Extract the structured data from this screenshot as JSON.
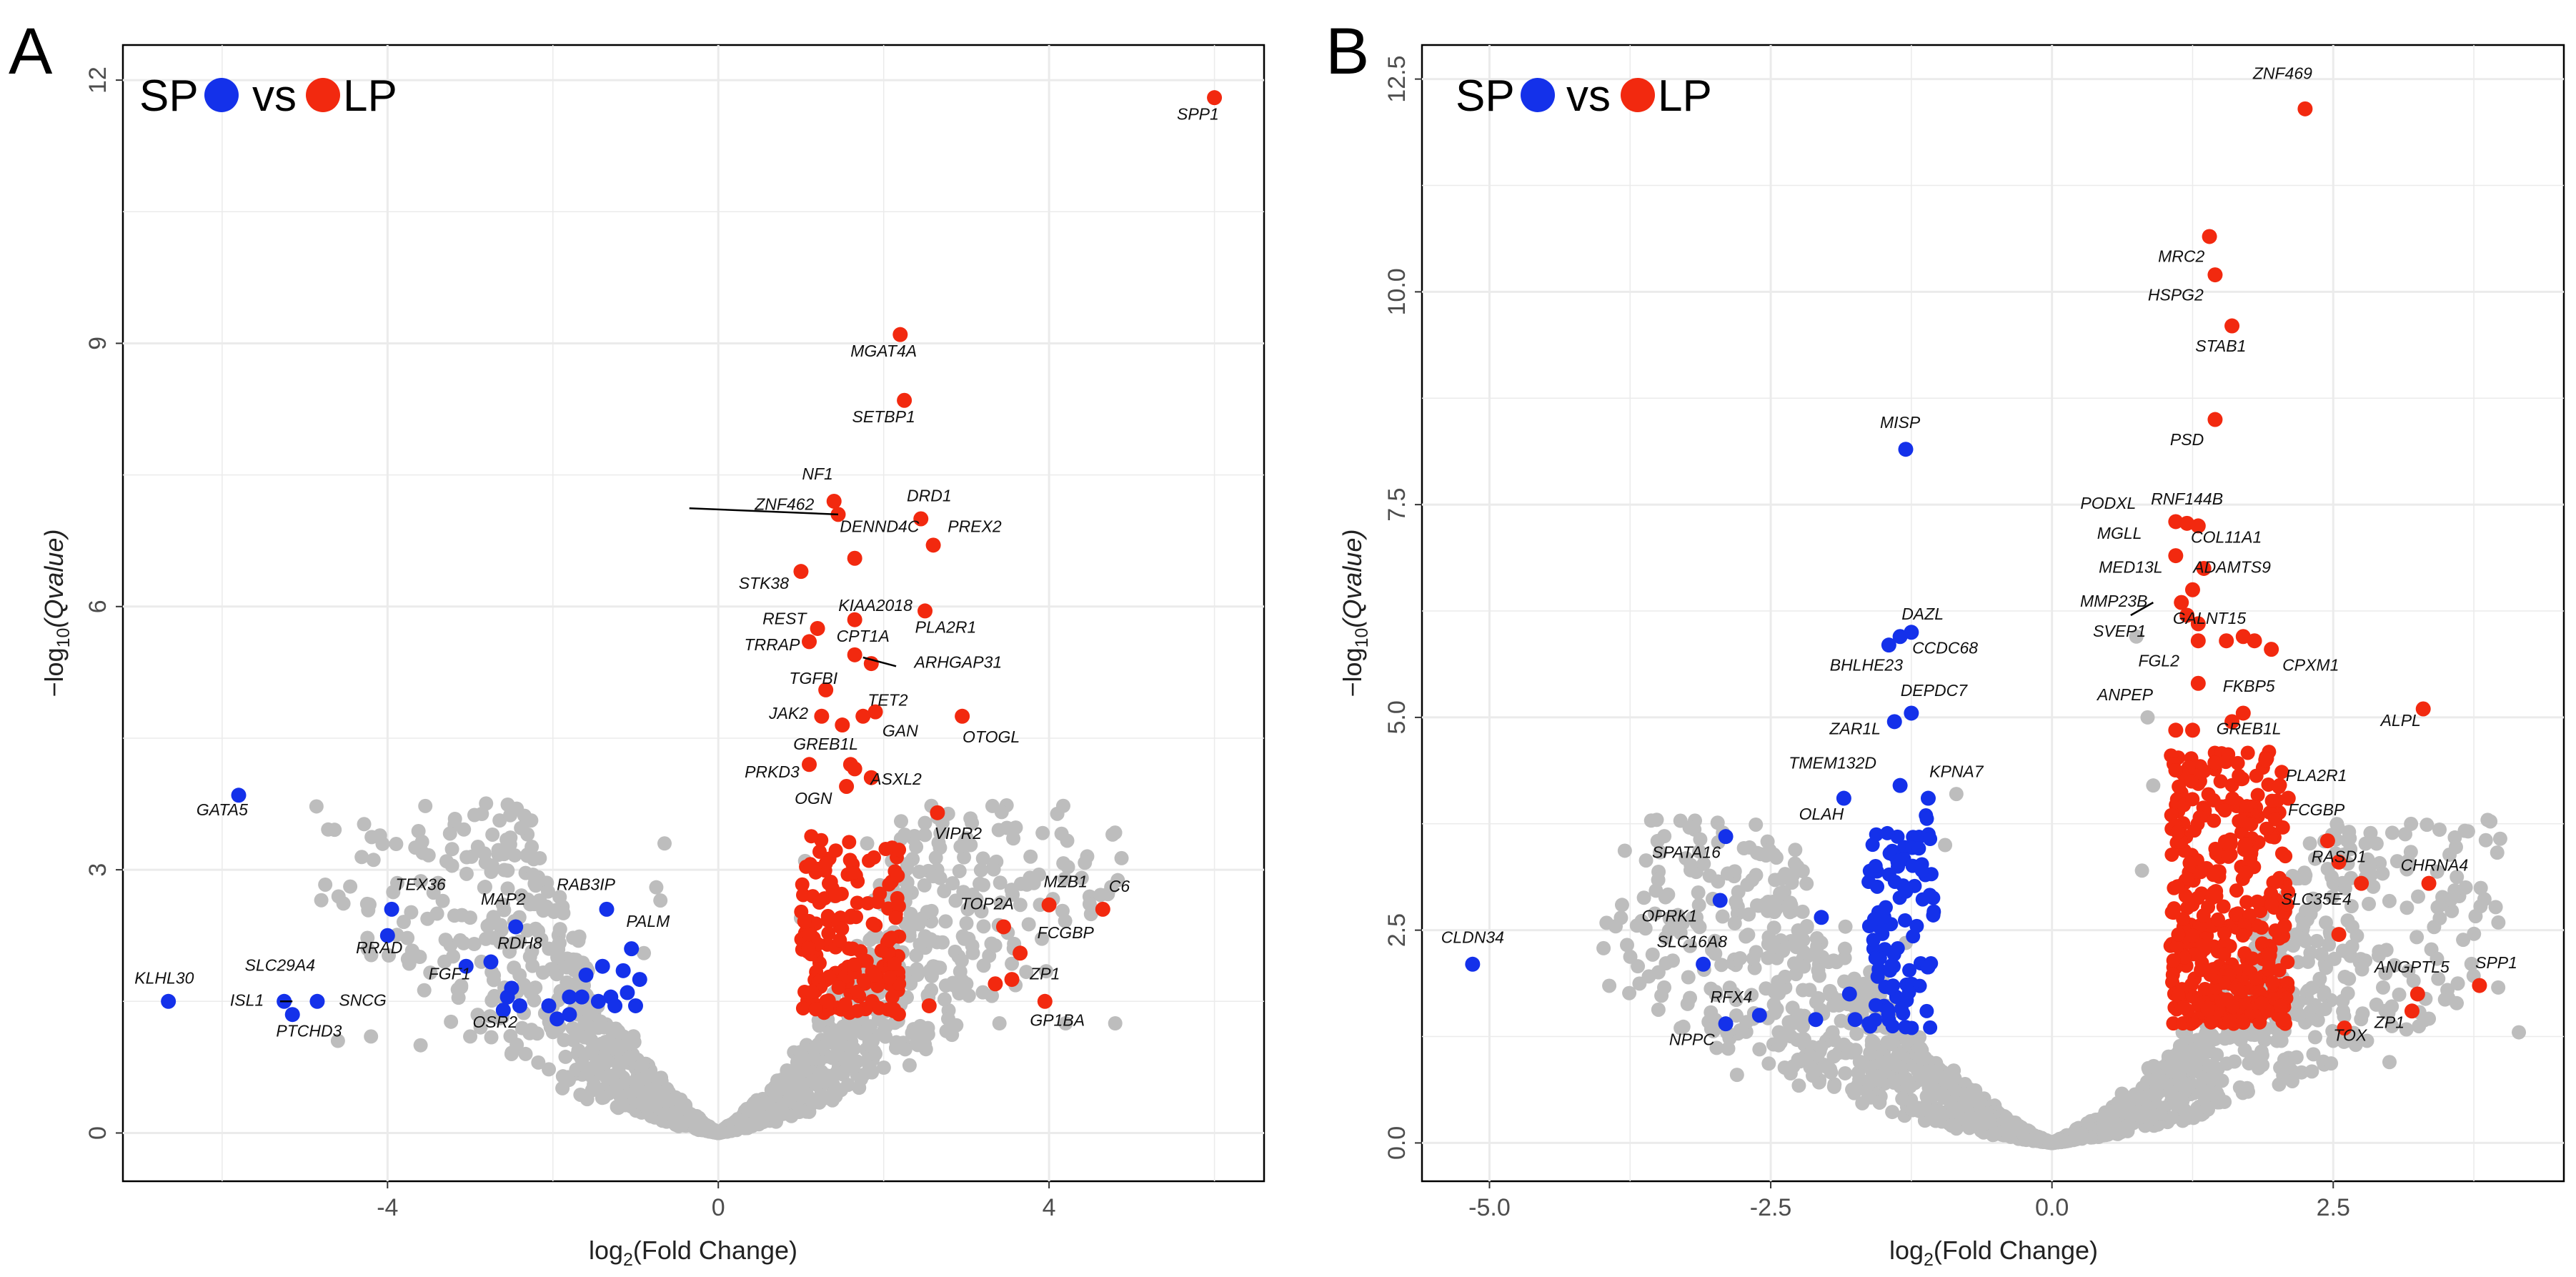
{
  "colors": {
    "down": "#1431ea",
    "up": "#f2290f",
    "ns": "#bdbdbd"
  },
  "chart_data": [
    {
      "type": "scatter",
      "panel": "A",
      "legend": {
        "left": "SP",
        "mid": "vs",
        "right": "LP",
        "placement": "top-left"
      },
      "xlabel_main": "log",
      "xlabel_sub": "2",
      "xlabel_rest": "(Fold  Change)",
      "ylabel_main": "−log",
      "ylabel_sub": "10",
      "ylabel_rest": "(Qvalue)",
      "xlim": [
        -7.2,
        6.6
      ],
      "ylim": [
        -0.55,
        12.4
      ],
      "xticks": [
        -4,
        0,
        4
      ],
      "yticks": [
        0,
        3,
        6,
        9,
        12
      ],
      "xtick_labels": [
        "-4",
        "0",
        "4"
      ],
      "ytick_labels": [
        "0",
        "3",
        "6",
        "9",
        "12"
      ],
      "ns_count": 1700,
      "ns_seed": 11,
      "ns_xspan": 4.9,
      "grey_extra": [
        [
          -4.6,
          1.05
        ],
        [
          -4.2,
          1.1
        ],
        [
          -3.6,
          1.0
        ],
        [
          -3.0,
          1.1
        ],
        [
          -2.5,
          0.9
        ],
        [
          -2.0,
          1.15
        ],
        [
          -1.7,
          1.4
        ],
        [
          -0.9,
          2.05
        ],
        [
          -0.7,
          2.65
        ],
        [
          -0.75,
          2.8
        ],
        [
          -0.65,
          3.3
        ],
        [
          1.0,
          2.45
        ],
        [
          1.05,
          3.1
        ],
        [
          1.8,
          3.3
        ],
        [
          2.1,
          3.1
        ],
        [
          2.4,
          2.4
        ],
        [
          3.0,
          1.7
        ],
        [
          3.4,
          1.25
        ],
        [
          4.2,
          1.25
        ],
        [
          4.8,
          1.25
        ],
        [
          2.6,
          1.9
        ],
        [
          1.4,
          2.7
        ]
      ],
      "up_points": [
        [
          6.0,
          11.8
        ],
        [
          2.2,
          9.1
        ],
        [
          2.25,
          8.35
        ],
        [
          1.4,
          7.2
        ],
        [
          1.45,
          7.05
        ],
        [
          2.45,
          7.0
        ],
        [
          2.6,
          6.7
        ],
        [
          1.65,
          6.55
        ],
        [
          1.0,
          6.4
        ],
        [
          2.5,
          5.95
        ],
        [
          1.2,
          5.75
        ],
        [
          1.65,
          5.85
        ],
        [
          1.1,
          5.6
        ],
        [
          1.65,
          5.45
        ],
        [
          1.85,
          5.35
        ],
        [
          1.3,
          5.05
        ],
        [
          1.25,
          4.75
        ],
        [
          1.9,
          4.8
        ],
        [
          1.75,
          4.75
        ],
        [
          1.5,
          4.65
        ],
        [
          2.95,
          4.75
        ],
        [
          1.1,
          4.2
        ],
        [
          1.6,
          4.2
        ],
        [
          1.65,
          4.15
        ],
        [
          1.85,
          4.05
        ],
        [
          2.65,
          3.65
        ],
        [
          1.55,
          3.95
        ],
        [
          4.0,
          2.6
        ],
        [
          4.65,
          2.55
        ],
        [
          3.45,
          2.35
        ],
        [
          3.65,
          2.05
        ],
        [
          3.55,
          1.75
        ],
        [
          3.35,
          1.7
        ],
        [
          3.95,
          1.5
        ],
        [
          2.55,
          1.45
        ]
      ],
      "up_cloud": {
        "n": 170,
        "x0": 1.0,
        "x1": 2.2,
        "y0": 1.35,
        "y1": 3.4,
        "seed": 5
      },
      "down_points": [
        [
          -5.8,
          3.85
        ],
        [
          -3.95,
          2.55
        ],
        [
          -4.0,
          2.25
        ],
        [
          -3.05,
          1.9
        ],
        [
          -2.45,
          2.35
        ],
        [
          -2.75,
          1.95
        ],
        [
          -2.5,
          1.65
        ],
        [
          -1.35,
          2.55
        ],
        [
          -6.65,
          1.5
        ],
        [
          -5.25,
          1.5
        ],
        [
          -5.15,
          1.35
        ],
        [
          -4.85,
          1.5
        ],
        [
          -1.05,
          2.1
        ],
        [
          -1.4,
          1.9
        ],
        [
          -1.15,
          1.85
        ],
        [
          -0.95,
          1.75
        ],
        [
          -1.3,
          1.55
        ],
        [
          -1.45,
          1.5
        ],
        [
          -1.6,
          1.8
        ],
        [
          -1.8,
          1.55
        ],
        [
          -1.65,
          1.55
        ],
        [
          -2.4,
          1.45
        ],
        [
          -2.05,
          1.45
        ],
        [
          -1.95,
          1.3
        ],
        [
          -1.8,
          1.35
        ],
        [
          -2.55,
          1.55
        ],
        [
          -2.6,
          1.4
        ],
        [
          -1.0,
          1.45
        ],
        [
          -1.1,
          1.6
        ],
        [
          -1.25,
          1.45
        ]
      ],
      "labels": [
        {
          "text": "SPP1",
          "x": 5.8,
          "y": 11.55
        },
        {
          "text": "MGAT4A",
          "x": 2.0,
          "y": 8.85
        },
        {
          "text": "SETBP1",
          "x": 2.0,
          "y": 8.1
        },
        {
          "text": "NF1",
          "x": 1.2,
          "y": 7.45
        },
        {
          "text": "ZNF462",
          "x": 0.8,
          "y": 7.1
        },
        {
          "text": "DRD1",
          "x": 2.55,
          "y": 7.2
        },
        {
          "text": "DENND4C",
          "x": 1.95,
          "y": 6.85
        },
        {
          "text": "PREX2",
          "x": 3.1,
          "y": 6.85
        },
        {
          "text": "STK38",
          "x": 0.55,
          "y": 6.2
        },
        {
          "text": "KIAA2018",
          "x": 1.9,
          "y": 5.95
        },
        {
          "text": "REST",
          "x": 0.8,
          "y": 5.8
        },
        {
          "text": "PLA2R1",
          "x": 2.75,
          "y": 5.7
        },
        {
          "text": "CPT1A",
          "x": 1.75,
          "y": 5.6
        },
        {
          "text": "TRRAP",
          "x": 0.65,
          "y": 5.5
        },
        {
          "text": "ARHGAP31",
          "x": 2.9,
          "y": 5.3
        },
        {
          "text": "TGFBI",
          "x": 1.15,
          "y": 5.12
        },
        {
          "text": "TET2",
          "x": 2.05,
          "y": 4.87
        },
        {
          "text": "JAK2",
          "x": 0.85,
          "y": 4.72
        },
        {
          "text": "GAN",
          "x": 2.2,
          "y": 4.52
        },
        {
          "text": "OTOGL",
          "x": 3.3,
          "y": 4.45
        },
        {
          "text": "GREB1L",
          "x": 1.3,
          "y": 4.37
        },
        {
          "text": "PRKD3",
          "x": 0.65,
          "y": 4.05
        },
        {
          "text": "ASXL2",
          "x": 2.15,
          "y": 3.97
        },
        {
          "text": "OGN",
          "x": 1.15,
          "y": 3.75
        },
        {
          "text": "VIPR2",
          "x": 2.9,
          "y": 3.35
        },
        {
          "text": "GATA5",
          "x": -6.0,
          "y": 3.62
        },
        {
          "text": "TEX36",
          "x": -3.6,
          "y": 2.77
        },
        {
          "text": "RAB3IP",
          "x": -1.6,
          "y": 2.77
        },
        {
          "text": "MAP2",
          "x": -2.6,
          "y": 2.6
        },
        {
          "text": "PALM",
          "x": -0.85,
          "y": 2.35
        },
        {
          "text": "TOP2A",
          "x": 3.25,
          "y": 2.55
        },
        {
          "text": "MZB1",
          "x": 4.2,
          "y": 2.8
        },
        {
          "text": "C6",
          "x": 4.85,
          "y": 2.75
        },
        {
          "text": "FCGBP",
          "x": 4.2,
          "y": 2.22
        },
        {
          "text": "RRAD",
          "x": -4.1,
          "y": 2.05
        },
        {
          "text": "RDH8",
          "x": -2.4,
          "y": 2.1
        },
        {
          "text": "FGF1",
          "x": -3.25,
          "y": 1.75
        },
        {
          "text": "ZP1",
          "x": 3.95,
          "y": 1.75
        },
        {
          "text": "KLHL30",
          "x": -6.7,
          "y": 1.7
        },
        {
          "text": "SLC29A4",
          "x": -5.3,
          "y": 1.85
        },
        {
          "text": "ISL1",
          "x": -5.7,
          "y": 1.45
        },
        {
          "text": "SNCG",
          "x": -4.3,
          "y": 1.45
        },
        {
          "text": "OSR2",
          "x": -2.7,
          "y": 1.2
        },
        {
          "text": "PTCHD3",
          "x": -4.95,
          "y": 1.1
        },
        {
          "text": "GP1BA",
          "x": 4.1,
          "y": 1.22
        }
      ],
      "leaders": [
        [
          -0.35,
          7.12,
          1.45,
          7.05
        ],
        [
          1.75,
          5.42,
          2.15,
          5.32
        ],
        [
          -5.3,
          1.5,
          -5.15,
          1.5
        ]
      ]
    },
    {
      "type": "scatter",
      "panel": "B",
      "legend": {
        "left": "SP",
        "mid": "vs",
        "right": "LP",
        "placement": "top-left"
      },
      "xlabel_main": "log",
      "xlabel_sub": "2",
      "xlabel_rest": "(Fold  Change)",
      "ylabel_main": "−log",
      "ylabel_sub": "10",
      "ylabel_rest": "(Qvalue)",
      "xlim": [
        -5.6,
        4.55
      ],
      "ylim": [
        -0.45,
        12.9
      ],
      "xticks": [
        -5,
        -2.5,
        0,
        2.5
      ],
      "yticks": [
        0,
        2.5,
        5,
        7.5,
        10,
        12.5
      ],
      "xtick_labels": [
        "-5.0",
        "-2.5",
        "0.0",
        "2.5"
      ],
      "ytick_labels": [
        "0.0",
        "2.5",
        "5.0",
        "7.5",
        "10.0",
        "12.5"
      ],
      "ns_count": 1900,
      "ns_seed": 23,
      "ns_xspan": 4.0,
      "grey_extra": [
        [
          -2.6,
          1.1
        ],
        [
          -2.3,
          0.9
        ],
        [
          -1.95,
          1.3
        ],
        [
          -1.6,
          1.15
        ],
        [
          -1.3,
          2.35
        ],
        [
          -1.05,
          2.7
        ],
        [
          -0.95,
          3.5
        ],
        [
          -0.85,
          4.1
        ],
        [
          0.8,
          3.2
        ],
        [
          0.9,
          4.2
        ],
        [
          0.85,
          5.0
        ],
        [
          0.75,
          5.95
        ],
        [
          1.95,
          2.25
        ],
        [
          2.2,
          1.5
        ],
        [
          2.5,
          1.2
        ],
        [
          2.8,
          1.2
        ],
        [
          4.15,
          1.3
        ],
        [
          3.0,
          0.95
        ],
        [
          -3.3,
          1.35
        ],
        [
          -2.8,
          0.8
        ]
      ],
      "up_points": [
        [
          2.25,
          12.15
        ],
        [
          1.4,
          10.65
        ],
        [
          1.45,
          10.2
        ],
        [
          1.6,
          9.6
        ],
        [
          1.45,
          8.5
        ],
        [
          1.1,
          7.3
        ],
        [
          1.2,
          7.28
        ],
        [
          1.3,
          7.25
        ],
        [
          1.1,
          6.9
        ],
        [
          1.35,
          6.75
        ],
        [
          1.25,
          6.5
        ],
        [
          1.15,
          6.35
        ],
        [
          1.2,
          6.2
        ],
        [
          1.3,
          6.1
        ],
        [
          1.55,
          5.9
        ],
        [
          1.7,
          5.95
        ],
        [
          1.8,
          5.9
        ],
        [
          1.95,
          5.8
        ],
        [
          1.3,
          5.9
        ],
        [
          1.3,
          5.4
        ],
        [
          1.7,
          5.05
        ],
        [
          1.6,
          4.95
        ],
        [
          3.3,
          5.1
        ],
        [
          1.9,
          4.5
        ],
        [
          2.1,
          4.05
        ],
        [
          2.45,
          3.55
        ],
        [
          2.75,
          3.05
        ],
        [
          3.35,
          3.05
        ],
        [
          2.55,
          2.45
        ],
        [
          3.8,
          1.85
        ],
        [
          3.25,
          1.75
        ],
        [
          3.2,
          1.55
        ],
        [
          2.6,
          1.35
        ],
        [
          2.55,
          3.3
        ],
        [
          1.25,
          4.85
        ],
        [
          1.1,
          4.85
        ]
      ],
      "up_cloud": {
        "n": 380,
        "x0": 1.05,
        "x1": 2.1,
        "y0": 1.4,
        "y1": 4.6,
        "seed": 7
      },
      "down_points": [
        [
          -1.3,
          8.15
        ],
        [
          -1.25,
          6.0
        ],
        [
          -1.35,
          5.95
        ],
        [
          -1.45,
          5.85
        ],
        [
          -1.4,
          4.95
        ],
        [
          -1.25,
          5.05
        ],
        [
          -1.1,
          4.05
        ],
        [
          -1.35,
          4.2
        ],
        [
          -1.85,
          4.05
        ],
        [
          -2.9,
          3.6
        ],
        [
          -2.95,
          2.85
        ],
        [
          -3.1,
          2.1
        ],
        [
          -5.15,
          2.1
        ],
        [
          -2.9,
          1.4
        ],
        [
          -2.6,
          1.5
        ],
        [
          -2.05,
          2.65
        ],
        [
          -1.8,
          1.75
        ],
        [
          -1.75,
          1.45
        ],
        [
          -2.1,
          1.45
        ]
      ],
      "down_cloud": {
        "n": 95,
        "x0": -1.65,
        "x1": -1.05,
        "y0": 1.35,
        "y1": 3.9,
        "seed": 3
      },
      "labels": [
        {
          "text": "ZNF469",
          "x": 2.05,
          "y": 12.5
        },
        {
          "text": "MRC2",
          "x": 1.15,
          "y": 10.35
        },
        {
          "text": "HSPG2",
          "x": 1.1,
          "y": 9.9
        },
        {
          "text": "STAB1",
          "x": 1.5,
          "y": 9.3
        },
        {
          "text": "MISP",
          "x": -1.35,
          "y": 8.4
        },
        {
          "text": "PSD",
          "x": 1.2,
          "y": 8.2
        },
        {
          "text": "PODXL",
          "x": 0.5,
          "y": 7.45
        },
        {
          "text": "RNF144B",
          "x": 1.2,
          "y": 7.5
        },
        {
          "text": "MGLL",
          "x": 0.6,
          "y": 7.1
        },
        {
          "text": "COL11A1",
          "x": 1.55,
          "y": 7.05
        },
        {
          "text": "MED13L",
          "x": 0.7,
          "y": 6.7
        },
        {
          "text": "ADAMTS9",
          "x": 1.6,
          "y": 6.7
        },
        {
          "text": "MMP23B",
          "x": 0.55,
          "y": 6.3
        },
        {
          "text": "GALNT15",
          "x": 1.4,
          "y": 6.1
        },
        {
          "text": "SVEP1",
          "x": 0.6,
          "y": 5.95
        },
        {
          "text": "DAZL",
          "x": -1.15,
          "y": 6.15
        },
        {
          "text": "CCDC68",
          "x": -0.95,
          "y": 5.75
        },
        {
          "text": "BHLHE23",
          "x": -1.65,
          "y": 5.55
        },
        {
          "text": "FGL2",
          "x": 0.95,
          "y": 5.6
        },
        {
          "text": "CPXM1",
          "x": 2.3,
          "y": 5.55
        },
        {
          "text": "DEPDC7",
          "x": -1.05,
          "y": 5.25
        },
        {
          "text": "FKBP5",
          "x": 1.75,
          "y": 5.3
        },
        {
          "text": "ANPEP",
          "x": 0.65,
          "y": 5.2
        },
        {
          "text": "ZAR1L",
          "x": -1.75,
          "y": 4.8
        },
        {
          "text": "ALPL",
          "x": 3.1,
          "y": 4.9
        },
        {
          "text": "GREB1L",
          "x": 1.75,
          "y": 4.8
        },
        {
          "text": "TMEM132D",
          "x": -1.95,
          "y": 4.4
        },
        {
          "text": "KPNA7",
          "x": -0.85,
          "y": 4.3
        },
        {
          "text": "PLA2R1",
          "x": 2.35,
          "y": 4.25
        },
        {
          "text": "OLAH",
          "x": -2.05,
          "y": 3.8
        },
        {
          "text": "FCGBP",
          "x": 2.35,
          "y": 3.85
        },
        {
          "text": "SPATA16",
          "x": -3.25,
          "y": 3.35
        },
        {
          "text": "RASD1",
          "x": 2.55,
          "y": 3.3
        },
        {
          "text": "CHRNA4",
          "x": 3.4,
          "y": 3.2
        },
        {
          "text": "SLC35E4",
          "x": 2.35,
          "y": 2.8
        },
        {
          "text": "OPRK1",
          "x": -3.4,
          "y": 2.6
        },
        {
          "text": "SLC16A8",
          "x": -3.2,
          "y": 2.3
        },
        {
          "text": "CLDN34",
          "x": -5.15,
          "y": 2.35
        },
        {
          "text": "ANGPTL5",
          "x": 3.2,
          "y": 2.0
        },
        {
          "text": "SPP1",
          "x": 3.95,
          "y": 2.05
        },
        {
          "text": "RFX4",
          "x": -2.85,
          "y": 1.65
        },
        {
          "text": "NPPC",
          "x": -3.2,
          "y": 1.15
        },
        {
          "text": "ZP1",
          "x": 3.0,
          "y": 1.35
        },
        {
          "text": "TOX",
          "x": 2.65,
          "y": 1.2
        }
      ],
      "leaders": [
        [
          0.7,
          6.2,
          0.9,
          6.35
        ]
      ]
    }
  ]
}
